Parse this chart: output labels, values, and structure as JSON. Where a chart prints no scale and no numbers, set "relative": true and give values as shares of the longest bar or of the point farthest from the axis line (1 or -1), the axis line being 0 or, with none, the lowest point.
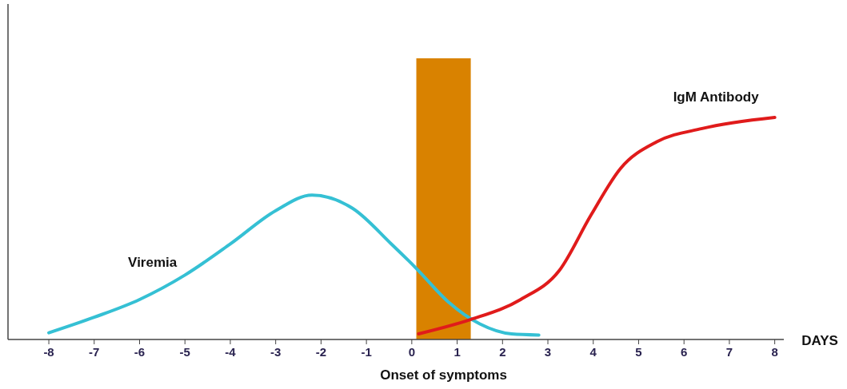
{
  "chart_data": {
    "type": "line",
    "relative": true,
    "xlabel": "DAYS",
    "xlim": [
      -8.9,
      8.2
    ],
    "xticks": [
      -8,
      -7,
      -6,
      -5,
      -4,
      -3,
      -2,
      -1,
      0,
      1,
      2,
      3,
      4,
      5,
      6,
      7,
      8
    ],
    "line_style": "solid",
    "bands": [
      {
        "axis": "x",
        "from": 0.1,
        "to": 1.3,
        "label": "Onset of symptoms",
        "color": "#d98200"
      }
    ],
    "series": [
      {
        "name": "Viremia",
        "color": "#35c0d4",
        "x": [
          -8,
          -7,
          -6,
          -5,
          -4,
          -3,
          -2.2,
          -1.3,
          -0.45,
          0.1,
          0.8,
          1.5,
          2.2,
          2.8
        ],
        "values": [
          0.03,
          0.1,
          0.18,
          0.29,
          0.43,
          0.58,
          0.65,
          0.59,
          0.43,
          0.32,
          0.17,
          0.07,
          0.025,
          0.02
        ]
      },
      {
        "name": "IgM Antibody",
        "color": "#e01b1b",
        "x": [
          0.15,
          1.3,
          2.4,
          3.25,
          3.95,
          4.6,
          5.4,
          6.4,
          8
        ],
        "values": [
          0.025,
          0.09,
          0.18,
          0.31,
          0.56,
          0.77,
          0.89,
          0.95,
          1.0
        ]
      }
    ]
  }
}
